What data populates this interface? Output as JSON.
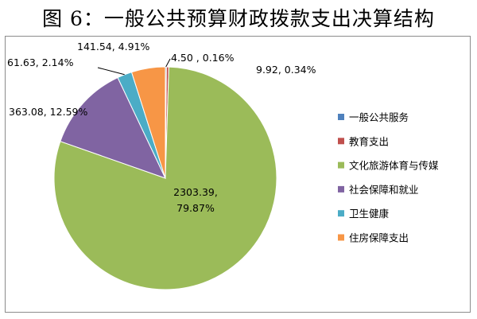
{
  "title": "图 6：一般公共预算财政拨款支出决算结构",
  "chart_data": {
    "type": "pie",
    "title": "图 6：一般公共预算财政拨款支出决算结构",
    "legend_position": "right",
    "slices": [
      {
        "name": "一般公共服务",
        "value": 4.5,
        "percent": "0.16%",
        "label": "4.50 , 0.16%",
        "color": "#4f81bd"
      },
      {
        "name": "教育支出",
        "value": 9.92,
        "percent": "0.34%",
        "label": "9.92, 0.34%",
        "color": "#c0504d"
      },
      {
        "name": "文化旅游体育与传媒",
        "value": 2303.39,
        "percent": "79.87%",
        "label": "2303.39,",
        "label2": "79.87%",
        "color": "#9bbb59"
      },
      {
        "name": "社会保障和就业",
        "value": 363.08,
        "percent": "12.59%",
        "label": "363.08, 12.59%",
        "color": "#8064a2"
      },
      {
        "name": "卫生健康",
        "value": 61.63,
        "percent": "2.14%",
        "label": "61.63, 2.14%",
        "color": "#4bacc6"
      },
      {
        "name": "住房保障支出",
        "value": 141.54,
        "percent": "4.91%",
        "label": "141.54, 4.91%",
        "color": "#f79646"
      }
    ]
  }
}
